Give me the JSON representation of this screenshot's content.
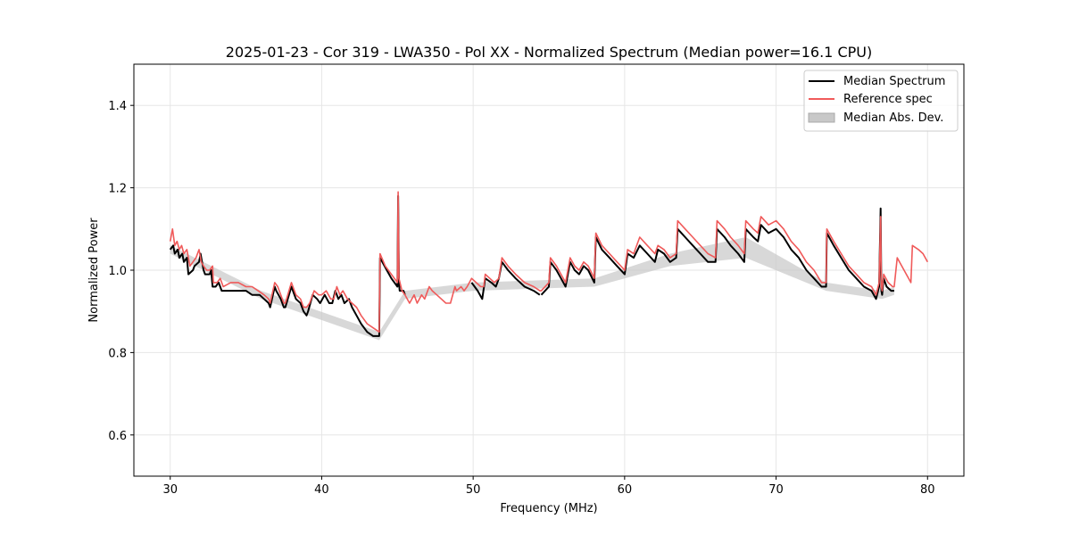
{
  "chart_data": {
    "type": "line",
    "title": "2025-01-23 - Cor 319 - LWA350 - Pol XX - Normalized Spectrum (Median power=16.1 CPU)",
    "xlabel": "Frequency (MHz)",
    "ylabel": "Normalized Power",
    "xlim": [
      27.6,
      82.4
    ],
    "ylim": [
      0.5,
      1.5
    ],
    "xticks": [
      30,
      40,
      50,
      60,
      70,
      80
    ],
    "yticks": [
      0.6,
      0.8,
      1.0,
      1.2,
      1.4
    ],
    "xtick_labels": [
      "30",
      "40",
      "50",
      "60",
      "70",
      "80"
    ],
    "ytick_labels": [
      "0.6",
      "0.8",
      "1.0",
      "1.2",
      "1.4"
    ],
    "grid": true,
    "legend_position": "top-right",
    "legend": [
      "Median Spectrum",
      "Reference spec",
      "Median Abs. Dev."
    ],
    "colors": {
      "median": "#000000",
      "reference": "#f05a5a",
      "mad_fill": "#c8c8c8"
    },
    "series": [
      {
        "name": "Median Spectrum",
        "x": [
          30.0,
          30.2,
          30.3,
          30.5,
          30.6,
          30.8,
          30.9,
          31.1,
          31.2,
          31.5,
          31.6,
          31.9,
          32.0,
          32.2,
          32.3,
          32.6,
          32.7,
          32.8,
          33.0,
          33.2,
          33.4,
          34.0,
          34.6,
          35.0,
          35.4,
          35.9,
          36.2,
          36.5,
          36.6,
          36.9,
          37.0,
          37.3,
          37.5,
          37.6,
          38.0,
          38.3,
          38.6,
          38.8,
          39.0,
          39.1,
          39.4,
          39.7,
          39.9,
          40.2,
          40.5,
          40.7,
          40.9,
          41.1,
          41.3,
          41.5,
          41.8,
          42.0,
          42.3,
          42.6,
          43.0,
          43.4,
          43.8,
          43.85,
          44.3,
          44.6,
          45.0,
          45.05,
          45.1,
          45.15,
          45.4,
          45.5
        ],
        "values": [
          1.05,
          1.06,
          1.04,
          1.05,
          1.03,
          1.04,
          1.02,
          1.03,
          0.99,
          1.0,
          1.01,
          1.02,
          1.04,
          1.0,
          0.99,
          0.99,
          1.0,
          0.96,
          0.96,
          0.97,
          0.95,
          0.95,
          0.95,
          0.95,
          0.94,
          0.94,
          0.93,
          0.92,
          0.91,
          0.96,
          0.95,
          0.93,
          0.91,
          0.91,
          0.96,
          0.93,
          0.92,
          0.9,
          0.89,
          0.9,
          0.94,
          0.93,
          0.92,
          0.94,
          0.92,
          0.92,
          0.95,
          0.93,
          0.94,
          0.92,
          0.93,
          0.91,
          0.89,
          0.87,
          0.85,
          0.84,
          0.84,
          1.03,
          1.0,
          0.98,
          0.96,
          1.18,
          0.97,
          0.95,
          0.95,
          0.94
        ],
        "segments": [
          {
            "x": [
              49.9,
              50.3,
              50.6,
              50.8,
              51.2,
              51.5,
              51.7,
              51.9,
              52.3,
              52.8,
              53.4,
              54.0,
              54.4
            ],
            "values": [
              0.97,
              0.95,
              0.93,
              0.98,
              0.97,
              0.96,
              0.98,
              1.02,
              1.0,
              0.98,
              0.96,
              0.95,
              0.94
            ]
          },
          {
            "x": [
              54.5,
              55.0,
              55.1,
              55.5,
              55.8,
              56.1,
              56.4,
              56.7,
              57.0,
              57.3,
              57.6,
              58.0,
              58.1,
              58.5,
              59.0,
              59.5,
              60.0,
              60.2,
              60.6,
              61.0,
              61.5,
              62.0,
              62.2,
              62.6,
              63.0,
              63.4,
              63.5,
              64.0,
              64.5,
              65.0,
              65.5,
              66.0,
              66.1,
              66.6,
              67.0,
              67.5,
              67.9,
              68.0,
              68.5,
              68.8,
              69.0,
              69.5,
              70.0,
              70.5,
              71.0,
              71.5,
              72.0,
              72.5,
              73.0,
              73.3,
              73.35,
              73.8,
              74.3,
              74.8,
              75.3,
              75.8,
              76.3,
              76.6,
              76.8,
              76.9,
              76.95,
              77.0,
              77.1,
              77.3,
              77.6,
              77.8
            ],
            "values": [
              0.94,
              0.96,
              1.02,
              1.0,
              0.98,
              0.96,
              1.02,
              1.0,
              0.99,
              1.01,
              1.0,
              0.97,
              1.08,
              1.05,
              1.03,
              1.01,
              0.99,
              1.04,
              1.03,
              1.06,
              1.04,
              1.02,
              1.05,
              1.04,
              1.02,
              1.03,
              1.1,
              1.08,
              1.06,
              1.04,
              1.02,
              1.02,
              1.1,
              1.08,
              1.06,
              1.04,
              1.02,
              1.1,
              1.08,
              1.07,
              1.11,
              1.09,
              1.1,
              1.08,
              1.05,
              1.03,
              1.0,
              0.98,
              0.96,
              0.96,
              1.09,
              1.06,
              1.03,
              1.0,
              0.98,
              0.96,
              0.95,
              0.93,
              0.96,
              1.15,
              0.95,
              0.94,
              0.98,
              0.96,
              0.95,
              0.95
            ]
          }
        ]
      },
      {
        "name": "Reference spec",
        "x": [
          30.0,
          30.15,
          30.3,
          30.45,
          30.6,
          30.75,
          30.9,
          31.1,
          31.3,
          31.5,
          31.7,
          31.9,
          32.05,
          32.2,
          32.4,
          32.6,
          32.8,
          32.85,
          33.1,
          33.3,
          33.5,
          34.0,
          34.5,
          35.0,
          35.4,
          35.8,
          36.2,
          36.5,
          36.6,
          36.9,
          37.1,
          37.3,
          37.5,
          37.6,
          38.0,
          38.3,
          38.6,
          38.8,
          39.0,
          39.2,
          39.5,
          39.8,
          40.0,
          40.3,
          40.6,
          40.8,
          41.0,
          41.2,
          41.4,
          41.7,
          42.0,
          42.3,
          42.6,
          43.0,
          43.4,
          43.8,
          43.85,
          44.2,
          44.6,
          45.0,
          45.05,
          45.1,
          45.3,
          45.5,
          45.8,
          46.1,
          46.3,
          46.6,
          46.8,
          47.1,
          47.3,
          47.6,
          47.9,
          48.2,
          48.5,
          48.8,
          48.9,
          49.2,
          49.4,
          49.6,
          49.9,
          50.2,
          50.5,
          50.7,
          50.8,
          51.1,
          51.4,
          51.7,
          51.9,
          52.3,
          52.8,
          53.4,
          54.0,
          54.4,
          54.5,
          55.0,
          55.1,
          55.5,
          55.8,
          56.1,
          56.4,
          56.7,
          57.0,
          57.3,
          57.6,
          58.0,
          58.1,
          58.5,
          59.0,
          59.5,
          60.0,
          60.2,
          60.6,
          61.0,
          61.5,
          62.0,
          62.2,
          62.6,
          63.0,
          63.4,
          63.5,
          64.0,
          64.5,
          65.0,
          65.5,
          66.0,
          66.1,
          66.6,
          67.0,
          67.5,
          67.9,
          68.0,
          68.5,
          68.8,
          69.0,
          69.5,
          70.0,
          70.5,
          71.0,
          71.5,
          72.0,
          72.5,
          73.0,
          73.3,
          73.35,
          73.8,
          74.3,
          74.8,
          75.3,
          75.8,
          76.3,
          76.6,
          76.8,
          76.9,
          76.95,
          77.0,
          77.1,
          77.4,
          77.7,
          77.8,
          78.0,
          78.3,
          78.6,
          78.9,
          79.0,
          79.4,
          79.7,
          80.0
        ],
        "values": [
          1.07,
          1.1,
          1.06,
          1.07,
          1.05,
          1.06,
          1.04,
          1.05,
          1.01,
          1.02,
          1.03,
          1.05,
          1.02,
          1.01,
          1.0,
          1.0,
          1.01,
          0.97,
          0.97,
          0.98,
          0.96,
          0.97,
          0.97,
          0.96,
          0.96,
          0.95,
          0.94,
          0.93,
          0.92,
          0.97,
          0.96,
          0.94,
          0.92,
          0.92,
          0.97,
          0.94,
          0.93,
          0.91,
          0.91,
          0.92,
          0.95,
          0.94,
          0.94,
          0.95,
          0.93,
          0.93,
          0.96,
          0.94,
          0.95,
          0.93,
          0.92,
          0.91,
          0.89,
          0.87,
          0.86,
          0.85,
          1.04,
          1.01,
          0.99,
          0.97,
          1.19,
          0.98,
          0.95,
          0.94,
          0.92,
          0.94,
          0.92,
          0.94,
          0.93,
          0.96,
          0.95,
          0.94,
          0.93,
          0.92,
          0.92,
          0.96,
          0.95,
          0.96,
          0.95,
          0.96,
          0.98,
          0.97,
          0.96,
          0.96,
          0.99,
          0.98,
          0.97,
          0.98,
          1.03,
          1.01,
          0.99,
          0.97,
          0.96,
          0.95,
          0.95,
          0.97,
          1.03,
          1.01,
          0.99,
          0.97,
          1.03,
          1.01,
          1.0,
          1.02,
          1.01,
          0.98,
          1.09,
          1.06,
          1.04,
          1.02,
          1.0,
          1.05,
          1.04,
          1.08,
          1.06,
          1.04,
          1.06,
          1.05,
          1.03,
          1.04,
          1.12,
          1.1,
          1.08,
          1.06,
          1.04,
          1.03,
          1.12,
          1.1,
          1.08,
          1.06,
          1.04,
          1.12,
          1.1,
          1.09,
          1.13,
          1.11,
          1.12,
          1.1,
          1.07,
          1.05,
          1.02,
          1.0,
          0.97,
          0.97,
          1.1,
          1.07,
          1.04,
          1.01,
          0.99,
          0.97,
          0.96,
          0.94,
          0.97,
          1.13,
          0.96,
          0.95,
          0.99,
          0.97,
          0.96,
          0.96,
          1.03,
          1.01,
          0.99,
          0.97,
          1.06,
          1.05,
          1.04,
          1.02
        ]
      },
      {
        "name": "Median Abs. Dev.",
        "type": "band",
        "x": [
          30.0,
          36.0,
          43.8,
          45.5,
          50.0,
          58.0,
          63.0,
          68.0,
          73.3,
          77.0,
          77.8
        ],
        "lower": [
          1.04,
          0.93,
          0.83,
          0.93,
          0.95,
          0.96,
          1.01,
          1.03,
          0.95,
          0.93,
          0.94
        ],
        "upper": [
          1.06,
          0.95,
          0.85,
          0.95,
          0.97,
          0.98,
          1.04,
          1.08,
          0.97,
          0.95,
          0.96
        ]
      }
    ]
  }
}
